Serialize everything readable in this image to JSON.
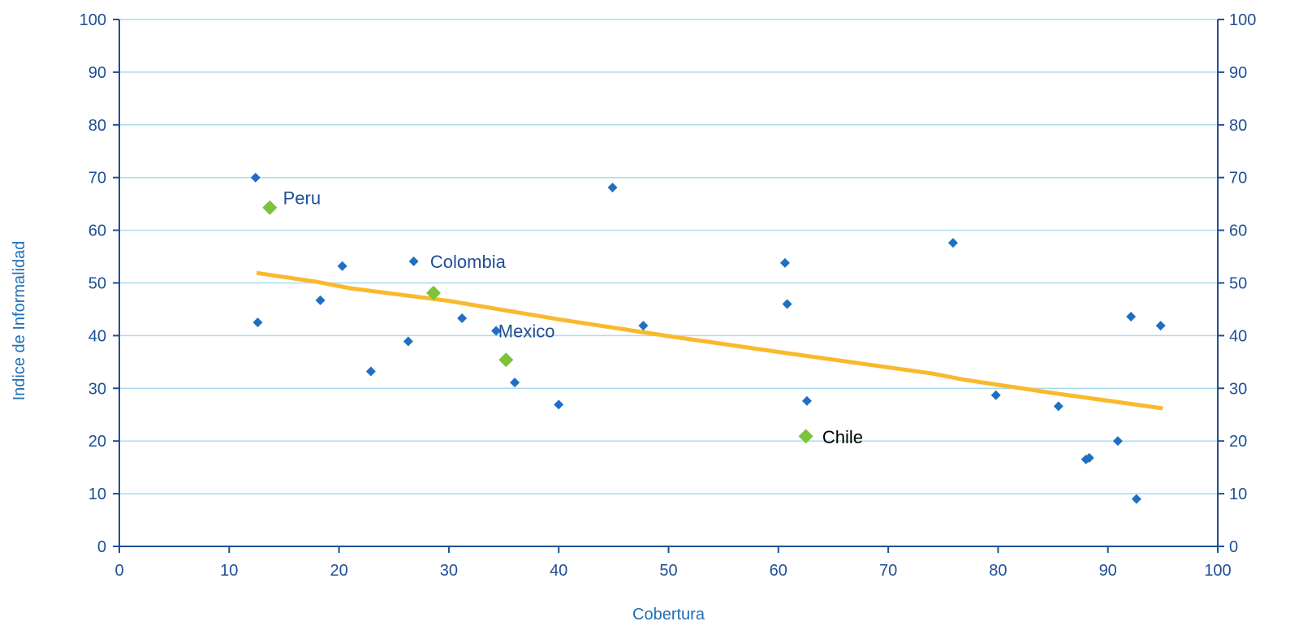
{
  "chart_data": {
    "type": "scatter",
    "xlabel": "Cobertura",
    "ylabel": "Indice de Informalidad",
    "xlim": [
      0,
      100
    ],
    "ylim": [
      0,
      100
    ],
    "x_ticks": [
      "0",
      "10",
      "20",
      "30",
      "40",
      "50",
      "60",
      "70",
      "80",
      "90",
      "100"
    ],
    "y_ticks": [
      "0",
      "10",
      "20",
      "30",
      "40",
      "50",
      "60",
      "70",
      "80",
      "90",
      "100"
    ],
    "grid": true,
    "series": [
      {
        "color": "#1f6fc2",
        "marker": "diamond",
        "points": [
          {
            "x": 12.4,
            "y": 70.0
          },
          {
            "x": 12.6,
            "y": 42.5
          },
          {
            "x": 18.3,
            "y": 46.7
          },
          {
            "x": 20.3,
            "y": 53.2
          },
          {
            "x": 22.9,
            "y": 33.2
          },
          {
            "x": 26.3,
            "y": 38.9
          },
          {
            "x": 26.8,
            "y": 54.1
          },
          {
            "x": 31.2,
            "y": 43.3
          },
          {
            "x": 34.3,
            "y": 40.9
          },
          {
            "x": 36.0,
            "y": 31.1
          },
          {
            "x": 40.0,
            "y": 26.9
          },
          {
            "x": 44.9,
            "y": 68.1
          },
          {
            "x": 47.7,
            "y": 41.9
          },
          {
            "x": 60.6,
            "y": 53.8
          },
          {
            "x": 60.8,
            "y": 46.0
          },
          {
            "x": 62.6,
            "y": 27.6
          },
          {
            "x": 75.9,
            "y": 57.6
          },
          {
            "x": 79.8,
            "y": 28.7
          },
          {
            "x": 85.5,
            "y": 26.6
          },
          {
            "x": 88.0,
            "y": 16.5
          },
          {
            "x": 88.3,
            "y": 16.8
          },
          {
            "x": 90.9,
            "y": 20.0
          },
          {
            "x": 92.1,
            "y": 43.6
          },
          {
            "x": 92.6,
            "y": 9.0
          },
          {
            "x": 94.8,
            "y": 41.9
          }
        ]
      },
      {
        "color": "#7dc23a",
        "marker": "diamond",
        "points": [
          {
            "x": 13.7,
            "y": 64.3,
            "label": "Peru"
          },
          {
            "x": 28.6,
            "y": 48.1,
            "label": "Colombia"
          },
          {
            "x": 35.2,
            "y": 35.4,
            "label": "Mexico"
          },
          {
            "x": 62.5,
            "y": 20.9,
            "label": "Chile"
          }
        ]
      }
    ],
    "trendline": {
      "color": "#f9b92d",
      "points": [
        {
          "x": 12.5,
          "y": 51.9
        },
        {
          "x": 18.0,
          "y": 50.2
        },
        {
          "x": 21.0,
          "y": 49.0
        },
        {
          "x": 30.0,
          "y": 46.6
        },
        {
          "x": 40.0,
          "y": 43.1
        },
        {
          "x": 50.0,
          "y": 39.9
        },
        {
          "x": 60.0,
          "y": 36.9
        },
        {
          "x": 74.0,
          "y": 32.8
        },
        {
          "x": 77.0,
          "y": 31.6
        },
        {
          "x": 85.0,
          "y": 29.1
        },
        {
          "x": 95.0,
          "y": 26.2
        }
      ]
    },
    "annotations": [
      {
        "text": "Peru",
        "x": 14.9,
        "y": 66.2,
        "style": "blue"
      },
      {
        "text": "Colombia",
        "x": 28.3,
        "y": 54.1,
        "style": "blue"
      },
      {
        "text": "Mexico",
        "x": 34.5,
        "y": 40.9,
        "style": "blue"
      },
      {
        "text": "Chile",
        "x": 64.0,
        "y": 20.8,
        "style": "dark"
      }
    ]
  }
}
